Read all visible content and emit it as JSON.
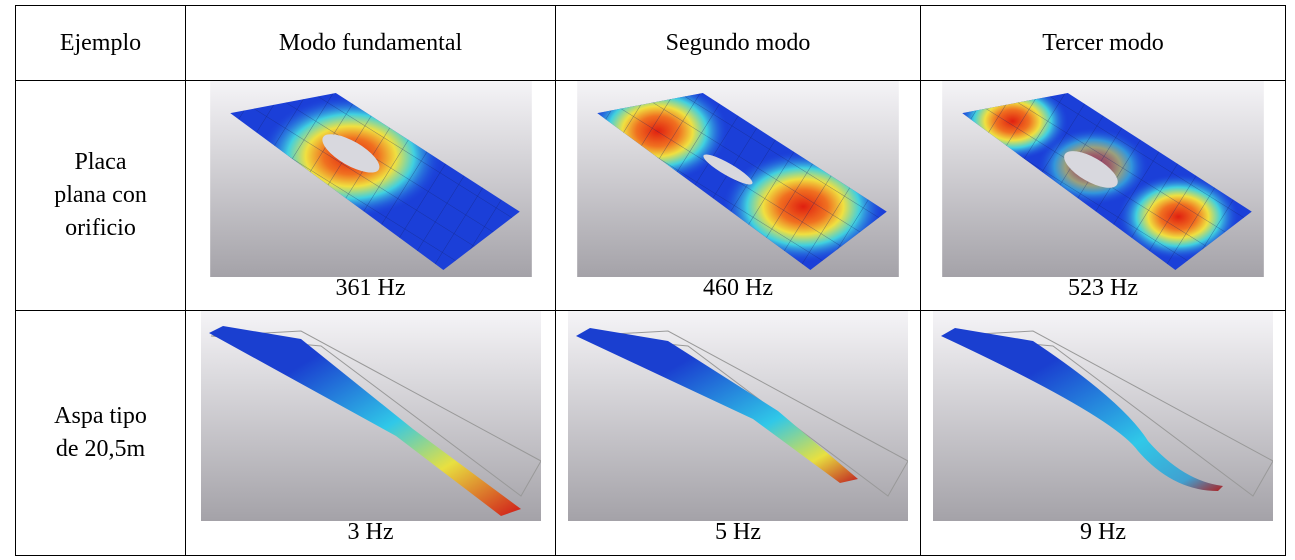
{
  "table": {
    "header": [
      "Ejemplo",
      "Modo fundamental",
      "Segundo modo",
      "Tercer modo"
    ],
    "rows": [
      {
        "example": [
          "Placa",
          "plana con",
          "orificio"
        ],
        "frequencies": [
          "361 Hz",
          "460 Hz",
          "523 Hz"
        ]
      },
      {
        "example": [
          "Aspa tipo",
          "de 20,5m"
        ],
        "frequencies": [
          "3 Hz",
          "5 Hz",
          "9 Hz"
        ]
      }
    ]
  }
}
